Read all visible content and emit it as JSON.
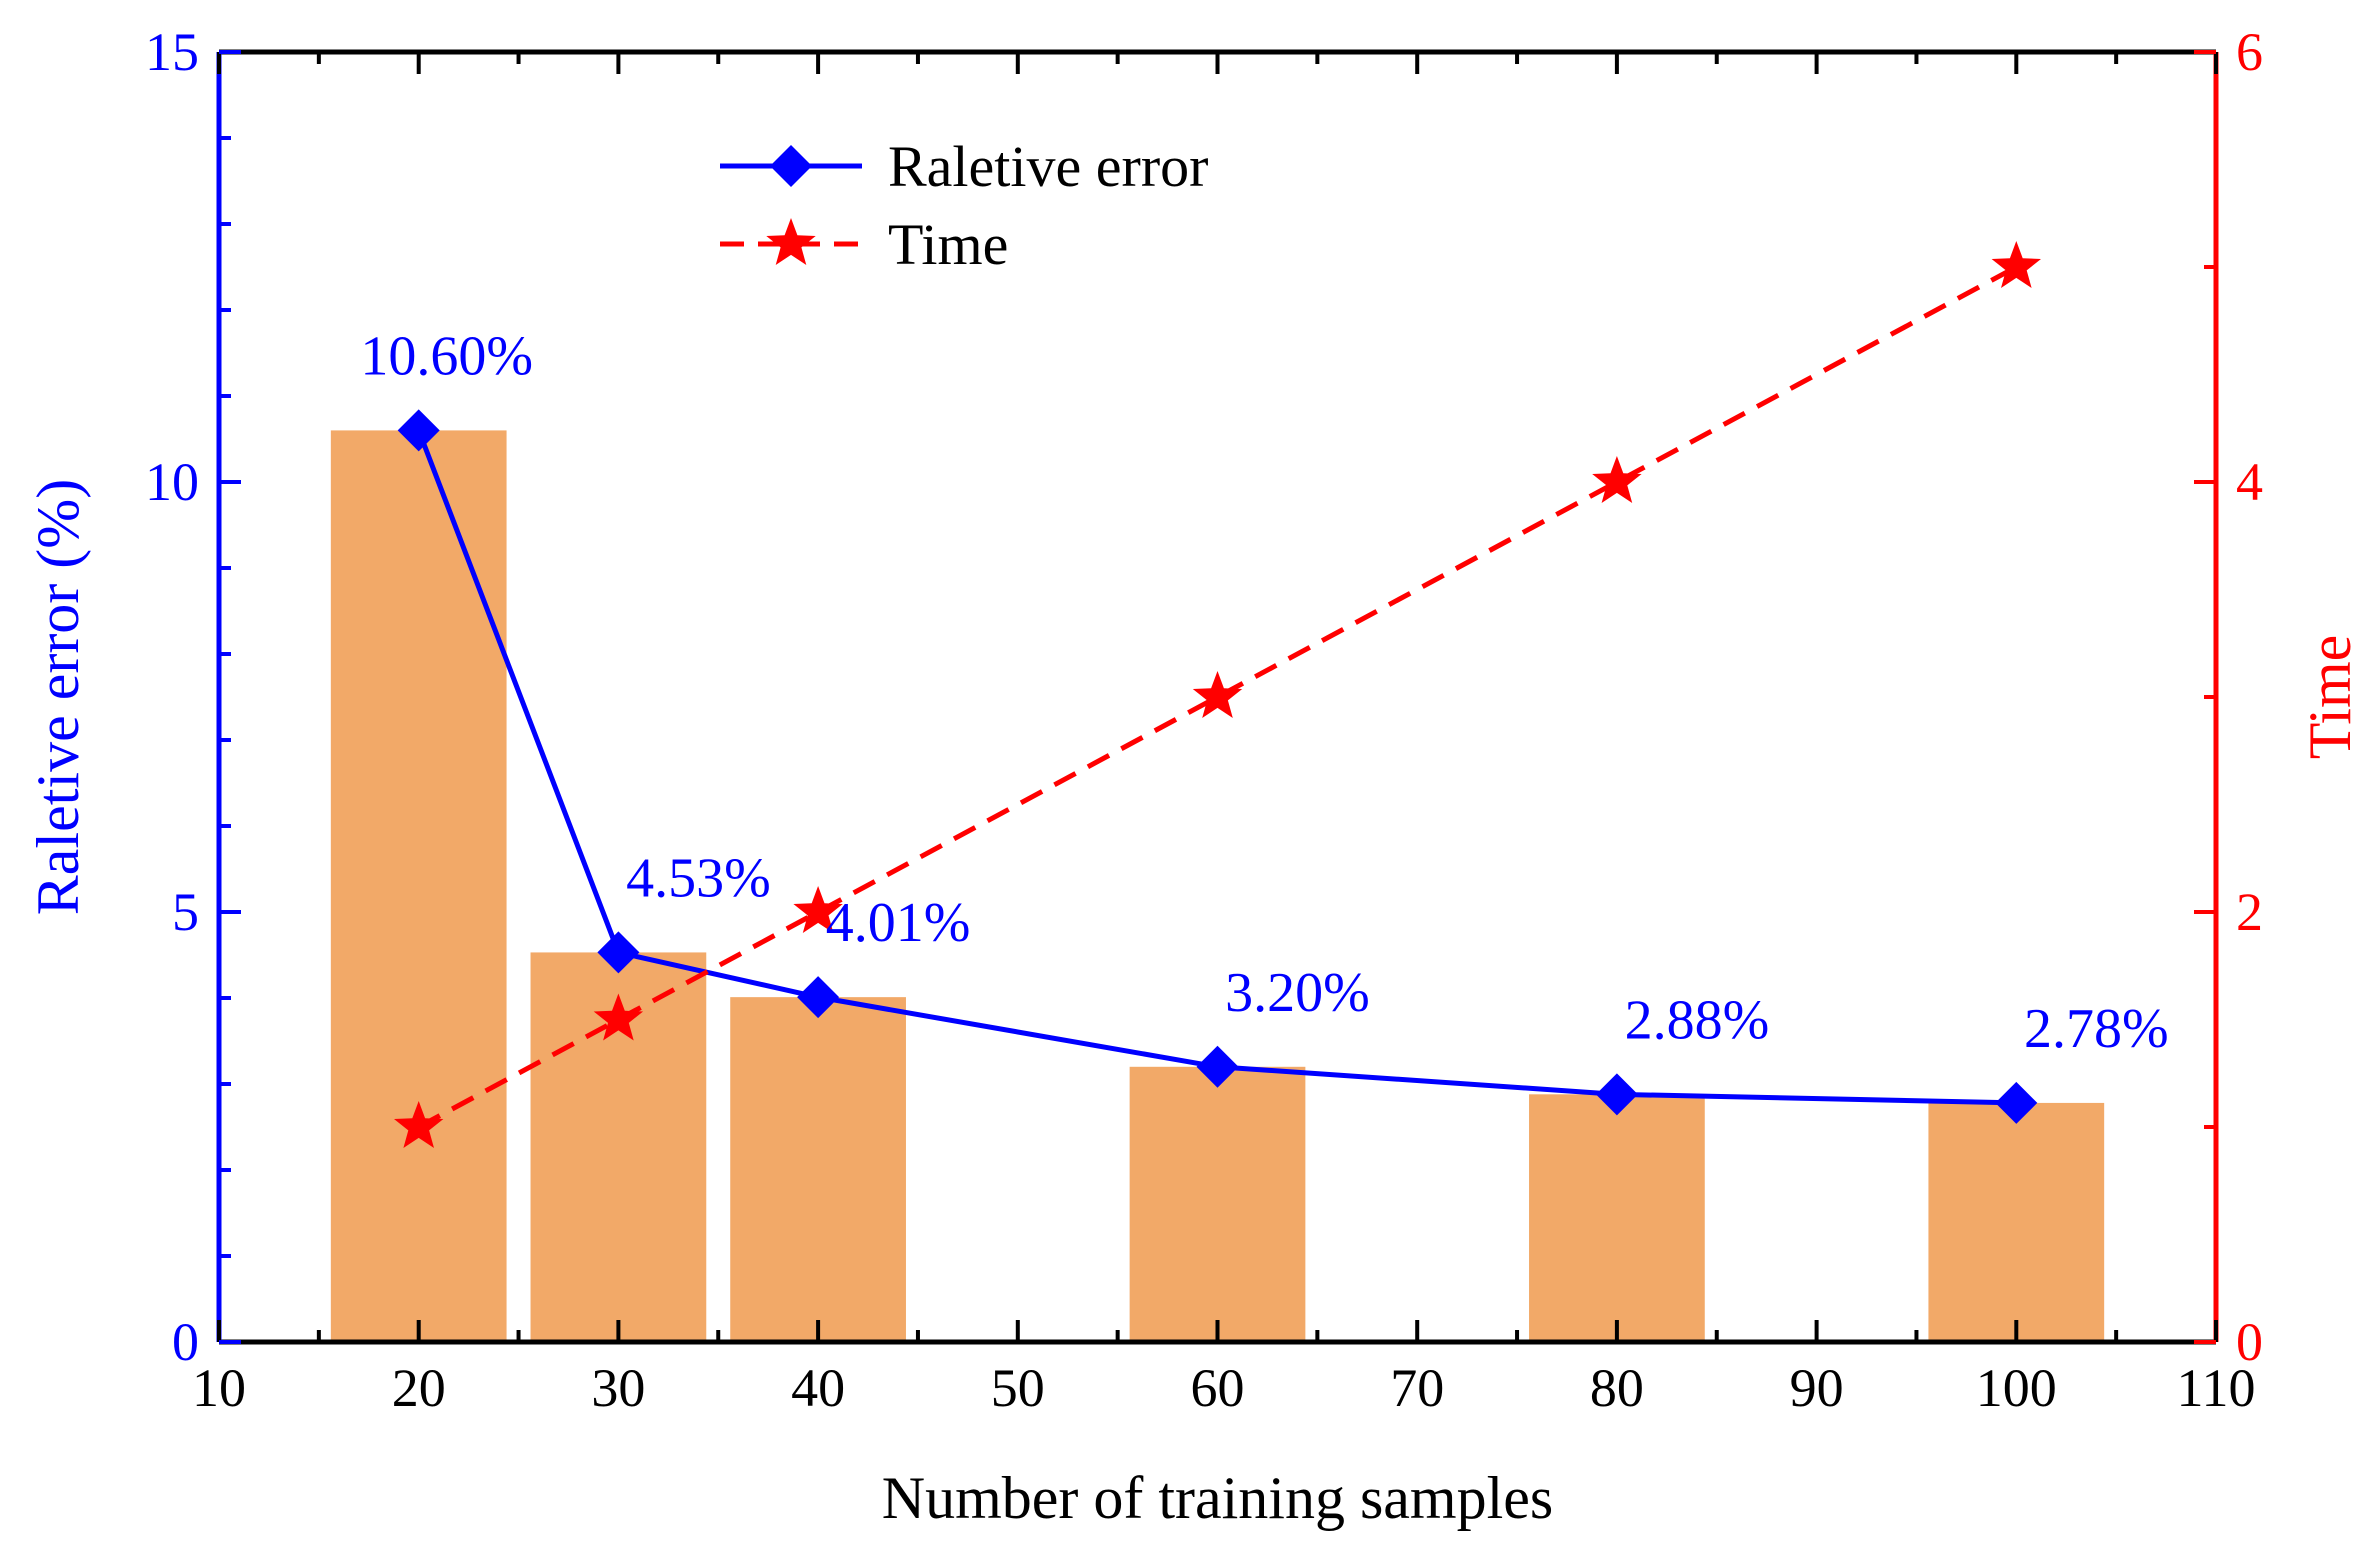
{
  "chart_data": {
    "type": "bar+line",
    "xlabel": "Number of training samples",
    "ylabel_left": "Raletive error (%)",
    "ylabel_right": "Time",
    "xlim": [
      10,
      110
    ],
    "xticks": [
      10,
      20,
      30,
      40,
      50,
      60,
      70,
      80,
      90,
      100,
      110
    ],
    "ylim_left": [
      0,
      15
    ],
    "yticks_left": [
      0,
      5,
      10,
      15
    ],
    "ylim_right": [
      0,
      6
    ],
    "yticks_right": [
      0,
      2,
      4,
      6
    ],
    "x": [
      20,
      30,
      40,
      60,
      80,
      100
    ],
    "bars": {
      "axis": "left",
      "values": [
        10.6,
        4.53,
        4.01,
        3.2,
        2.88,
        2.78
      ],
      "color": "#f2a968"
    },
    "series": [
      {
        "name": "Raletive error",
        "axis": "left",
        "values": [
          10.6,
          4.53,
          4.01,
          3.2,
          2.88,
          2.78
        ],
        "labels": [
          "10.60%",
          "4.53%",
          "4.01%",
          "3.20%",
          "2.88%",
          "2.78%"
        ],
        "color": "#0000ff",
        "style": "solid",
        "marker": "diamond"
      },
      {
        "name": "Time",
        "axis": "right",
        "values": [
          1,
          1.5,
          2,
          3,
          4,
          5
        ],
        "color": "#ff0000",
        "style": "dashed",
        "marker": "star"
      }
    ],
    "legend_position": "top-center",
    "left_axis_color": "#0000ff",
    "right_axis_color": "#ff0000"
  }
}
